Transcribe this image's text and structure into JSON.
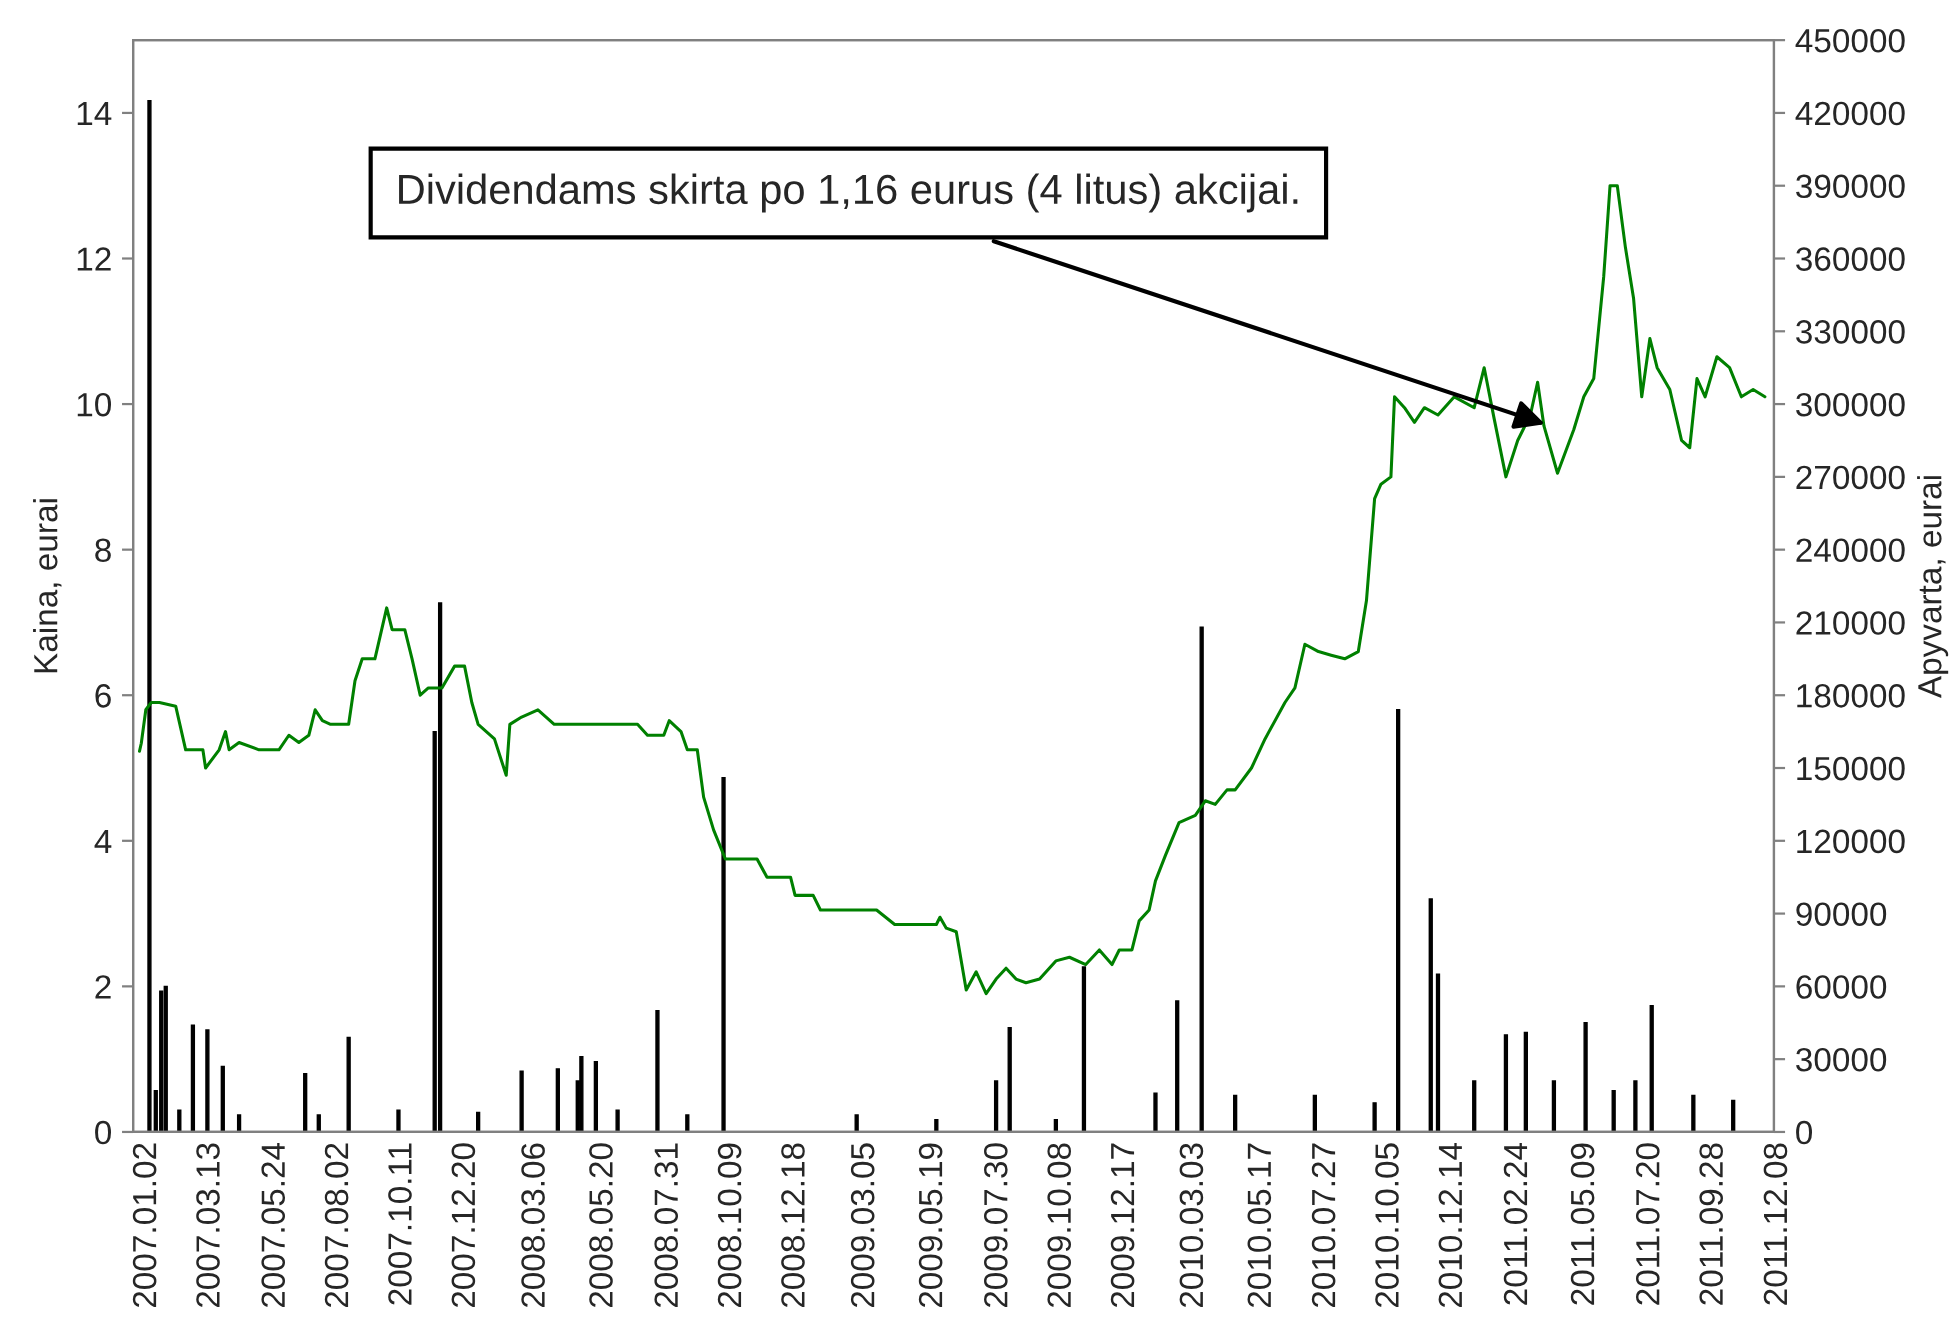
{
  "chart_data": {
    "type": "line",
    "ylabel": "Kaina, eurai",
    "y2label": "Apyvarta, eurai",
    "xlim": [
      "2006-12-26",
      "2011-12-12"
    ],
    "xticks": [
      {
        "value": "2007-01-02",
        "label": "2007.01.02"
      },
      {
        "value": "2007-03-13",
        "label": "2007.03.13"
      },
      {
        "value": "2007-05-24",
        "label": "2007.05.24"
      },
      {
        "value": "2007-08-02",
        "label": "2007.08.02"
      },
      {
        "value": "2007-10-11",
        "label": "2007.10.11"
      },
      {
        "value": "2007-12-20",
        "label": "2007.12.20"
      },
      {
        "value": "2008-03-06",
        "label": "2008.03.06"
      },
      {
        "value": "2008-05-20",
        "label": "2008.05.20"
      },
      {
        "value": "2008-07-31",
        "label": "2008.07.31"
      },
      {
        "value": "2008-10-09",
        "label": "2008.10.09"
      },
      {
        "value": "2008-12-18",
        "label": "2008.12.18"
      },
      {
        "value": "2009-03-05",
        "label": "2009.03.05"
      },
      {
        "value": "2009-05-19",
        "label": "2009.05.19"
      },
      {
        "value": "2009-07-30",
        "label": "2009.07.30"
      },
      {
        "value": "2009-10-08",
        "label": "2009.10.08"
      },
      {
        "value": "2009-12-17",
        "label": "2009.12.17"
      },
      {
        "value": "2010-03-03",
        "label": "2010.03.03"
      },
      {
        "value": "2010-05-17",
        "label": "2010.05.17"
      },
      {
        "value": "2010-07-27",
        "label": "2010.07.27"
      },
      {
        "value": "2010-10-05",
        "label": "2010.10.05"
      },
      {
        "value": "2010-12-14",
        "label": "2010.12.14"
      },
      {
        "value": "2011-02-24",
        "label": "2011.02.24"
      },
      {
        "value": "2011-05-09",
        "label": "2011.05.09"
      },
      {
        "value": "2011-07-20",
        "label": "2011.07.20"
      },
      {
        "value": "2011-09-28",
        "label": "2011.09.28"
      },
      {
        "value": "2011-12-08",
        "label": "2011.12.08"
      }
    ],
    "ylim": [
      0,
      15
    ],
    "yticks": [
      0,
      2,
      4,
      6,
      8,
      10,
      12,
      14
    ],
    "y2lim": [
      0,
      450000
    ],
    "y2ticks": [
      0,
      30000,
      60000,
      90000,
      120000,
      150000,
      180000,
      210000,
      240000,
      270000,
      300000,
      330000,
      360000,
      390000,
      420000,
      450000
    ],
    "series": [
      {
        "color": "#008000",
        "x": [
          "2007-01-02",
          "2007-01-04",
          "2007-01-09",
          "2007-01-15",
          "2007-01-24",
          "2007-02-11",
          "2007-02-22",
          "2007-03-13",
          "2007-03-16",
          "2007-03-31",
          "2007-04-07",
          "2007-04-11",
          "2007-04-22",
          "2007-05-14",
          "2007-06-05",
          "2007-06-16",
          "2007-06-27",
          "2007-07-08",
          "2007-07-15",
          "2007-07-23",
          "2007-08-01",
          "2007-08-10",
          "2007-08-21",
          "2007-08-28",
          "2007-09-05",
          "2007-09-19",
          "2007-10-02",
          "2007-10-08",
          "2007-10-22",
          "2007-10-30",
          "2007-11-08",
          "2007-11-17",
          "2007-12-02",
          "2007-12-16",
          "2007-12-27",
          "2008-01-04",
          "2008-01-11",
          "2008-01-29",
          "2008-02-11",
          "2008-02-15",
          "2008-02-28",
          "2008-03-17",
          "2008-04-04",
          "2008-05-22",
          "2008-07-05",
          "2008-07-16",
          "2008-08-03",
          "2008-08-09",
          "2008-08-22",
          "2008-08-29",
          "2008-09-09",
          "2008-09-16",
          "2008-09-27",
          "2008-10-10",
          "2008-11-14",
          "2008-11-25",
          "2008-12-21",
          "2008-12-26",
          "2009-01-15",
          "2009-01-23",
          "2009-02-10",
          "2009-03-26",
          "2009-04-15",
          "2009-05-09",
          "2009-05-31",
          "2009-06-04",
          "2009-06-11",
          "2009-06-22",
          "2009-07-03",
          "2009-07-14",
          "2009-07-25",
          "2009-08-05",
          "2009-08-16",
          "2009-08-27",
          "2009-09-07",
          "2009-09-22",
          "2009-10-10",
          "2009-10-25",
          "2009-11-12",
          "2009-11-27",
          "2009-12-11",
          "2009-12-19",
          "2010-01-02",
          "2010-01-10",
          "2010-01-21",
          "2010-01-28",
          "2010-02-08",
          "2010-02-23",
          "2010-03-13",
          "2010-03-24",
          "2010-04-04",
          "2010-04-17",
          "2010-04-26",
          "2010-05-14",
          "2010-05-29",
          "2010-06-20",
          "2010-07-01",
          "2010-07-12",
          "2010-07-27",
          "2010-08-10",
          "2010-08-25",
          "2010-09-09",
          "2010-09-18",
          "2010-09-27",
          "2010-10-04",
          "2010-10-15",
          "2010-10-19",
          "2010-10-30",
          "2010-11-10",
          "2010-11-21",
          "2010-12-06",
          "2010-12-24",
          "2011-01-15",
          "2011-01-26",
          "2011-02-06",
          "2011-02-19",
          "2011-03-04",
          "2011-03-18",
          "2011-03-26",
          "2011-04-02",
          "2011-04-17",
          "2011-05-05",
          "2011-05-16",
          "2011-05-27",
          "2011-06-07",
          "2011-06-14",
          "2011-06-22",
          "2011-07-01",
          "2011-07-10",
          "2011-07-19",
          "2011-07-28",
          "2011-08-05",
          "2011-08-19",
          "2011-09-01",
          "2011-09-10",
          "2011-09-18",
          "2011-09-27",
          "2011-10-10",
          "2011-10-24",
          "2011-11-06",
          "2011-11-19",
          "2011-12-02"
        ],
        "values": [
          5.23,
          5.34,
          5.8,
          5.9,
          5.9,
          5.85,
          5.25,
          5.25,
          5.0,
          5.25,
          5.5,
          5.25,
          5.35,
          5.25,
          5.25,
          5.45,
          5.35,
          5.45,
          5.8,
          5.65,
          5.6,
          5.6,
          5.6,
          6.2,
          6.5,
          6.5,
          7.2,
          6.9,
          6.9,
          6.5,
          6.0,
          6.1,
          6.1,
          6.4,
          6.4,
          5.9,
          5.6,
          5.4,
          4.9,
          5.6,
          5.7,
          5.8,
          5.6,
          5.6,
          5.6,
          5.45,
          5.45,
          5.65,
          5.5,
          5.25,
          5.25,
          4.6,
          4.15,
          3.75,
          3.75,
          3.5,
          3.5,
          3.25,
          3.25,
          3.05,
          3.05,
          3.05,
          2.85,
          2.85,
          2.85,
          2.95,
          2.8,
          2.75,
          1.95,
          2.2,
          1.9,
          2.1,
          2.25,
          2.1,
          2.05,
          2.1,
          2.35,
          2.4,
          2.3,
          2.5,
          2.3,
          2.5,
          2.5,
          2.9,
          3.05,
          3.45,
          3.8,
          4.25,
          4.35,
          4.55,
          4.5,
          4.7,
          4.7,
          5.0,
          5.4,
          5.9,
          6.1,
          6.7,
          6.6,
          6.55,
          6.5,
          6.6,
          7.3,
          8.7,
          8.9,
          9.0,
          10.1,
          9.95,
          9.75,
          9.95,
          9.85,
          10.1,
          9.95,
          10.5,
          9.8,
          9.0,
          9.5,
          9.85,
          10.3,
          9.7,
          9.05,
          9.65,
          10.1,
          10.35,
          11.75,
          13.0,
          13.0,
          12.15,
          11.45,
          10.1,
          10.9,
          10.5,
          10.2,
          9.5,
          9.4,
          10.35,
          10.1,
          10.65,
          10.5,
          10.1,
          10.2,
          10.1
        ]
      },
      {
        "type": "bar",
        "axis": "y2",
        "color": "#000000",
        "x": [
          "2007-01-13",
          "2007-01-20",
          "2007-01-26",
          "2007-01-31",
          "2007-02-15",
          "2007-03-02",
          "2007-03-18",
          "2007-04-04",
          "2007-04-22",
          "2007-07-04",
          "2007-07-19",
          "2007-08-21",
          "2007-10-15",
          "2007-11-24",
          "2007-11-30",
          "2008-01-11",
          "2008-02-28",
          "2008-04-08",
          "2008-04-30",
          "2008-05-04",
          "2008-05-20",
          "2008-06-13",
          "2008-07-27",
          "2008-08-29",
          "2008-10-08",
          "2009-03-04",
          "2009-05-31",
          "2009-08-05",
          "2009-08-20",
          "2009-10-10",
          "2009-11-10",
          "2010-01-28",
          "2010-02-21",
          "2010-03-20",
          "2010-04-26",
          "2010-07-23",
          "2010-09-27",
          "2010-10-23",
          "2010-11-28",
          "2010-12-06",
          "2011-01-15",
          "2011-02-19",
          "2011-03-13",
          "2011-04-13",
          "2011-05-18",
          "2011-06-18",
          "2011-07-12",
          "2011-07-30",
          "2011-09-14",
          "2011-10-28"
        ],
        "values": [
          425000,
          17000,
          58000,
          60000,
          9000,
          44000,
          42000,
          27000,
          7000,
          24000,
          7000,
          39000,
          9000,
          165000,
          218000,
          8000,
          25000,
          26000,
          21000,
          31000,
          29000,
          9000,
          50000,
          7000,
          146000,
          7000,
          5000,
          21000,
          43000,
          5000,
          68000,
          16000,
          54000,
          208000,
          15000,
          15000,
          12000,
          174000,
          96000,
          65000,
          21000,
          40000,
          41000,
          21000,
          45000,
          17000,
          21000,
          52000,
          15000,
          13000
        ]
      }
    ],
    "annotations": [
      {
        "text": "Dividendams skirta po 1,16 eurus (4 litus) akcijai.",
        "x": "2011-04-09",
        "y": 9.7
      }
    ]
  }
}
